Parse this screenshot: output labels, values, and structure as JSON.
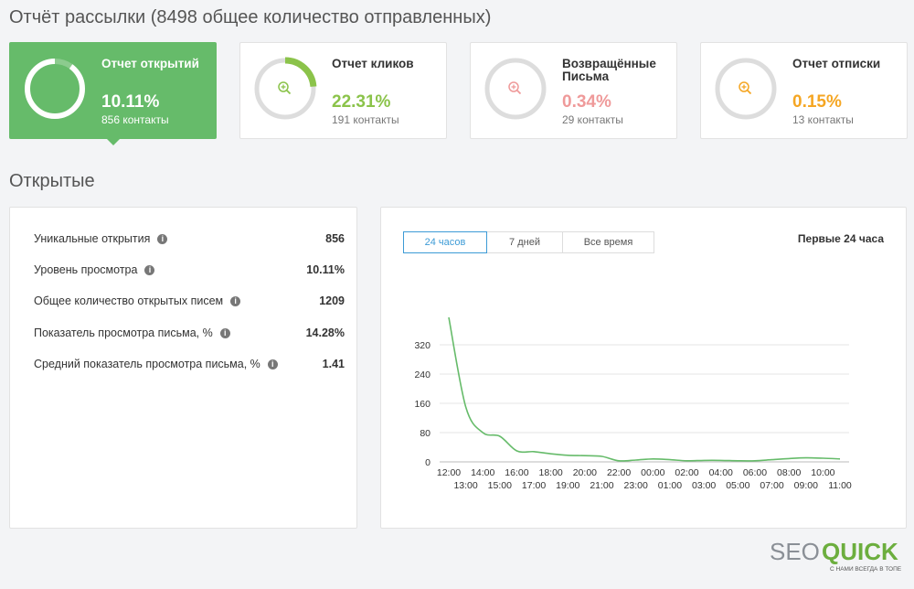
{
  "page": {
    "title": "Отчёт рассылки (8498 общее количество отправленных)"
  },
  "cards": [
    {
      "title": "Отчет открытий",
      "percent": "10.11%",
      "sub": "856 контакты",
      "color": "#ffffff",
      "icon": "donut-ring"
    },
    {
      "title": "Отчет кликов",
      "percent": "22.31%",
      "sub": "191 контакты",
      "color": "#8bc34a",
      "icon": "zoom-in-icon"
    },
    {
      "title": "Возвращённые Письма",
      "percent": "0.34%",
      "sub": "29 контакты",
      "color": "#ef9a9a",
      "icon": "zoom-in-icon"
    },
    {
      "title": "Отчет отписки",
      "percent": "0.15%",
      "sub": "13 контакты",
      "color": "#f5a623",
      "icon": "zoom-in-icon"
    }
  ],
  "section": {
    "title": "Открытые"
  },
  "stats": [
    {
      "label": "Уникальные открытия",
      "value": "856"
    },
    {
      "label": "Уровень просмотра",
      "value": "10.11%"
    },
    {
      "label": "Общее количество открытых писем",
      "value": "1209"
    },
    {
      "label": "Показатель просмотра письма, %",
      "value": "14.28%"
    },
    {
      "label": "Средний показатель просмотра письма, %",
      "value": "1.41"
    }
  ],
  "tabs": [
    {
      "label": "24 часов",
      "active": true
    },
    {
      "label": "7 дней",
      "active": false
    },
    {
      "label": "Все время",
      "active": false
    }
  ],
  "range_label": "Первые 24 часа",
  "chart_data": {
    "type": "line",
    "title": "",
    "xlabel": "",
    "ylabel": "",
    "ylim": [
      0,
      320
    ],
    "yticks": [
      0,
      80,
      160,
      240,
      320
    ],
    "grid": true,
    "x_top": [
      "12:00",
      "14:00",
      "16:00",
      "18:00",
      "20:00",
      "22:00",
      "00:00",
      "02:00",
      "04:00",
      "06:00",
      "08:00",
      "10:00"
    ],
    "x_bottom": [
      "13:00",
      "15:00",
      "17:00",
      "19:00",
      "21:00",
      "23:00",
      "01:00",
      "03:00",
      "05:00",
      "07:00",
      "09:00",
      "11:00"
    ],
    "x": [
      "12:00",
      "13:00",
      "14:00",
      "15:00",
      "16:00",
      "17:00",
      "18:00",
      "19:00",
      "20:00",
      "21:00",
      "22:00",
      "23:00",
      "00:00",
      "01:00",
      "02:00",
      "03:00",
      "04:00",
      "05:00",
      "06:00",
      "07:00",
      "08:00",
      "09:00",
      "10:00",
      "11:00"
    ],
    "series": [
      {
        "color": "#66bb6a",
        "values": [
          395,
          150,
          80,
          70,
          30,
          28,
          22,
          18,
          17,
          15,
          3,
          5,
          8,
          6,
          3,
          4,
          4,
          3,
          3,
          6,
          9,
          11,
          10,
          8
        ]
      }
    ]
  },
  "watermark": {
    "brand_left": "SEO",
    "brand_right": "QUICK",
    "tagline": "С НАМИ ВСЕГДА В ТОПЕ"
  }
}
